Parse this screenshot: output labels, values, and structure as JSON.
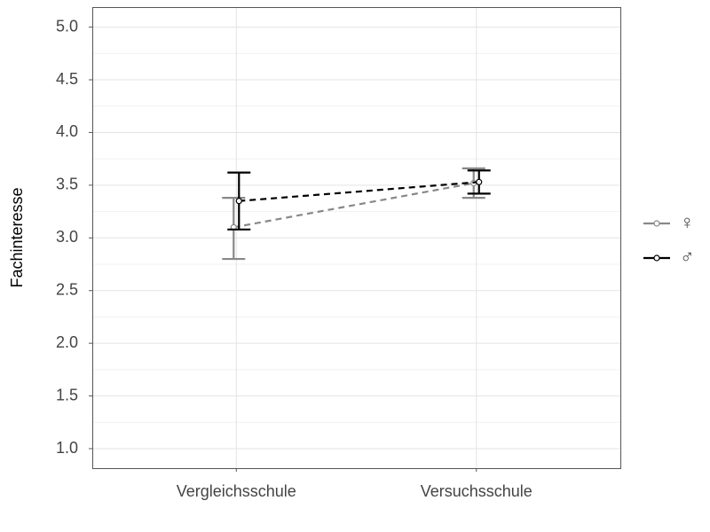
{
  "chart_data": {
    "type": "errorbar-line",
    "y_label": "Fachinteresse",
    "categories": [
      "Vergleichsschule",
      "Versuchsschule"
    ],
    "series": [
      {
        "name": "♀",
        "color": "#888888",
        "values": [
          3.1,
          3.52
        ],
        "lower": [
          2.8,
          3.38
        ],
        "upper": [
          3.38,
          3.66
        ]
      },
      {
        "name": "♂",
        "color": "#000000",
        "values": [
          3.35,
          3.53
        ],
        "lower": [
          3.08,
          3.42
        ],
        "upper": [
          3.62,
          3.64
        ]
      }
    ],
    "ylim": [
      0.815,
      5.19
    ],
    "yticks": [
      {
        "value": 1,
        "label": "1.0"
      },
      1.5,
      {
        "value": 2,
        "label": "2.0"
      },
      2.5,
      {
        "value": 3,
        "label": "3.0"
      },
      3.5,
      {
        "value": 4,
        "label": "4.0"
      },
      4.5,
      {
        "value": 5,
        "label": "5.0"
      }
    ],
    "grid": true,
    "legend": "right"
  }
}
